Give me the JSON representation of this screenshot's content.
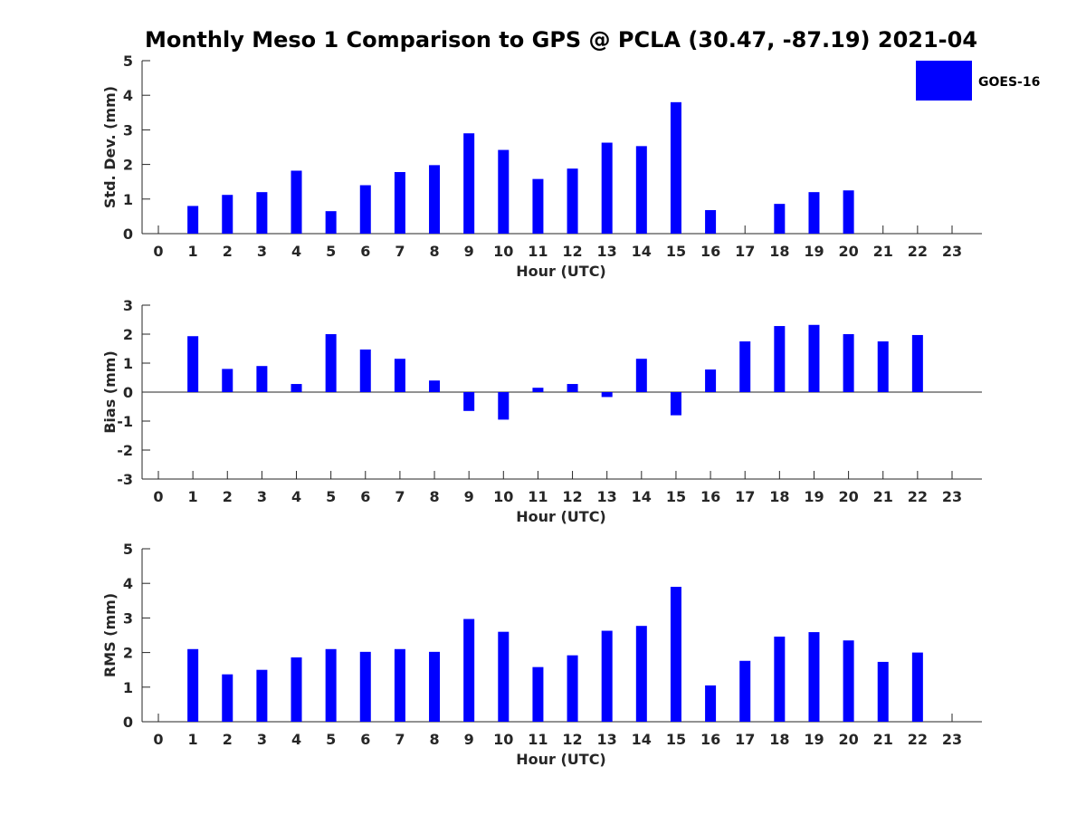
{
  "title": "Monthly Meso 1 Comparison to GPS @ PCLA (30.47, -87.19) 2021-04",
  "legend": {
    "label": "GOES-16",
    "color": "#0000ff",
    "position": "top-right"
  },
  "colors": {
    "bar": "#0000ff",
    "axis": "#262626"
  },
  "chart_data": [
    {
      "type": "bar",
      "ylabel": "Std. Dev. (mm)",
      "xlabel": "Hour (UTC)",
      "ylim": [
        0,
        5
      ],
      "yticks": [
        "0",
        "1",
        "2",
        "3",
        "4",
        "5"
      ],
      "categories": [
        "0",
        "1",
        "2",
        "3",
        "4",
        "5",
        "6",
        "7",
        "8",
        "9",
        "10",
        "11",
        "12",
        "13",
        "14",
        "15",
        "16",
        "17",
        "18",
        "19",
        "20",
        "21",
        "22",
        "23"
      ],
      "series": [
        {
          "name": "GOES-16",
          "values": [
            null,
            0.8,
            1.12,
            1.2,
            1.82,
            0.65,
            1.4,
            1.78,
            1.98,
            2.9,
            2.42,
            1.58,
            1.88,
            2.63,
            2.53,
            3.8,
            0.68,
            null,
            0.86,
            1.2,
            1.25,
            null,
            null,
            null
          ]
        }
      ]
    },
    {
      "type": "bar",
      "ylabel": "Bias (mm)",
      "xlabel": "Hour (UTC)",
      "ylim": [
        -3,
        3
      ],
      "yticks": [
        "-3",
        "-2",
        "-1",
        "0",
        "1",
        "2",
        "3"
      ],
      "categories": [
        "0",
        "1",
        "2",
        "3",
        "4",
        "5",
        "6",
        "7",
        "8",
        "9",
        "10",
        "11",
        "12",
        "13",
        "14",
        "15",
        "16",
        "17",
        "18",
        "19",
        "20",
        "21",
        "22",
        "23"
      ],
      "series": [
        {
          "name": "GOES-16",
          "values": [
            null,
            1.93,
            0.8,
            0.9,
            0.28,
            2.0,
            1.47,
            1.15,
            0.4,
            -0.65,
            -0.95,
            0.15,
            0.28,
            -0.17,
            1.15,
            -0.8,
            0.78,
            1.75,
            2.28,
            2.32,
            2.0,
            1.75,
            1.97,
            null
          ]
        }
      ]
    },
    {
      "type": "bar",
      "ylabel": "RMS (mm)",
      "xlabel": "Hour (UTC)",
      "ylim": [
        0,
        5
      ],
      "yticks": [
        "0",
        "1",
        "2",
        "3",
        "4",
        "5"
      ],
      "categories": [
        "0",
        "1",
        "2",
        "3",
        "4",
        "5",
        "6",
        "7",
        "8",
        "9",
        "10",
        "11",
        "12",
        "13",
        "14",
        "15",
        "16",
        "17",
        "18",
        "19",
        "20",
        "21",
        "22",
        "23"
      ],
      "series": [
        {
          "name": "GOES-16",
          "values": [
            null,
            2.1,
            1.37,
            1.5,
            1.86,
            2.1,
            2.02,
            2.1,
            2.02,
            2.97,
            2.6,
            1.58,
            1.92,
            2.63,
            2.77,
            3.9,
            1.05,
            1.76,
            2.46,
            2.59,
            2.35,
            1.73,
            2.0,
            null
          ]
        }
      ]
    }
  ]
}
